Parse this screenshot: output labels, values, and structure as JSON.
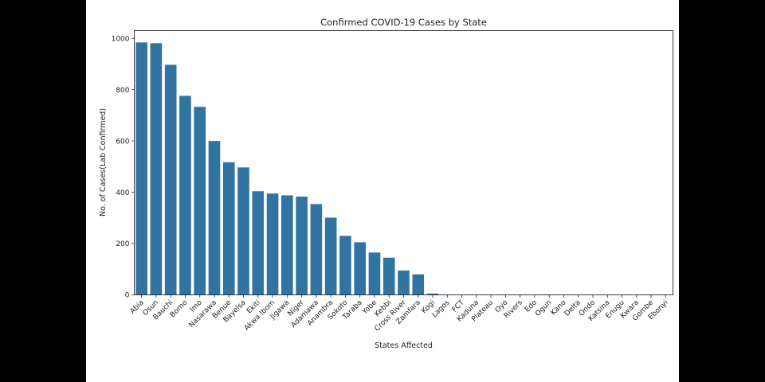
{
  "chart_data": {
    "type": "bar",
    "title": "Confirmed COVID-19 Cases by State",
    "xlabel": "States Affected",
    "ylabel": "No. of Cases(Lab Confirmed)",
    "ylim": [
      0,
      1030
    ],
    "yticks": [
      0,
      200,
      400,
      600,
      800,
      1000
    ],
    "grid": false,
    "bar_color": "#3274a1",
    "categories": [
      "Abia",
      "Osun",
      "Bauchi",
      "Borno",
      "Imo",
      "Nasarawa",
      "Benue",
      "Bayelsa",
      "Ekiti",
      "Akwa Ibom",
      "Jigawa",
      "Niger",
      "Adamawa",
      "Anambra",
      "Sokoto",
      "Taraba",
      "Yobe",
      "Kebbi",
      "Cross River",
      "Zamfara",
      "Kogi",
      "Lagos",
      "FCT",
      "Kaduna",
      "Plateau",
      "Oyo",
      "Rivers",
      "Edo",
      "Ogun",
      "Kano",
      "Delta",
      "Ondo",
      "Katsina",
      "Enugu",
      "Kwara",
      "Gombe",
      "Ebonyi"
    ],
    "values": [
      984,
      981,
      897,
      776,
      733,
      600,
      517,
      497,
      404,
      395,
      388,
      383,
      354,
      301,
      230,
      205,
      165,
      145,
      95,
      80,
      5,
      0,
      0,
      0,
      0,
      0,
      0,
      0,
      0,
      0,
      0,
      0,
      0,
      0,
      0,
      0,
      0
    ]
  }
}
